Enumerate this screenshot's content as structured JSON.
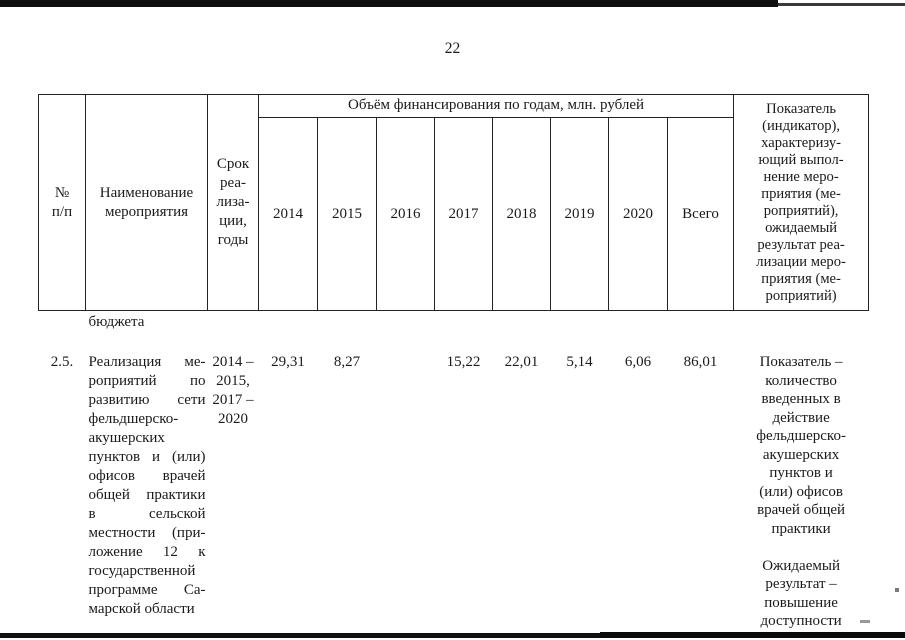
{
  "page": {
    "number": "22"
  },
  "table": {
    "header": {
      "col_num": "№\nп/п",
      "col_name": "Наименование\nмероприятия",
      "col_term": "Срок\nреа-\nлиза-\nции,\nгоды",
      "finance_span": "Объём финансирования по годам, млн. рублей",
      "years": [
        "2014",
        "2015",
        "2016",
        "2017",
        "2018",
        "2019",
        "2020"
      ],
      "total": "Всего",
      "col_indicator": "Показатель\n(индикатор),\nхарактеризу-\nющий выпол-\nнение меро-\nприятия (ме-\nроприятий),\nожидаемый\nрезультат реа-\nлизации меро-\nприятия (ме-\nроприятий)"
    },
    "continuation_row": {
      "name_text": "бюджета"
    },
    "rows": [
      {
        "num": "2.5.",
        "name_lines": [
          "Реализация ме-",
          "роприятий по",
          "развитию сети",
          "фельдшерско-",
          "акушерских",
          "пунктов и (или)",
          "офисов врачей",
          "общей практики",
          "в сельской",
          "местности (при-",
          "ложение 12 к",
          "государственной",
          "программе Са-",
          "марской области"
        ],
        "term_lines": [
          "2014 –",
          "2015,",
          "2017 –",
          "2020"
        ],
        "values": [
          "29,31",
          "8,27",
          "",
          "15,22",
          "22,01",
          "5,14",
          "6,06",
          "86,01"
        ],
        "indicator_lines": [
          "Показатель –",
          "количество",
          "введенных в",
          "действие",
          "фельдшерско-",
          "акушерских",
          "пунктов и",
          "(или) офисов",
          "врачей общей",
          "практики",
          "",
          "Ожидаемый",
          "результат –",
          "повышение",
          "доступности"
        ]
      }
    ]
  }
}
